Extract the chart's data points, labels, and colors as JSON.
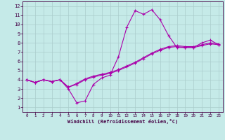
{
  "xlabel": "Windchill (Refroidissement éolien,°C)",
  "background_color": "#c5eae8",
  "grid_color": "#aacccc",
  "line_color": "#aa00aa",
  "xlim": [
    -0.5,
    23.5
  ],
  "ylim": [
    0.5,
    12.5
  ],
  "xticks": [
    0,
    1,
    2,
    3,
    4,
    5,
    6,
    7,
    8,
    9,
    10,
    11,
    12,
    13,
    14,
    15,
    16,
    17,
    18,
    19,
    20,
    21,
    22,
    23
  ],
  "yticks": [
    1,
    2,
    3,
    4,
    5,
    6,
    7,
    8,
    9,
    10,
    11,
    12
  ],
  "hours": [
    0,
    1,
    2,
    3,
    4,
    5,
    6,
    7,
    8,
    9,
    10,
    11,
    12,
    13,
    14,
    15,
    16,
    17,
    18,
    19,
    20,
    21,
    22,
    23
  ],
  "line1": [
    4.0,
    3.7,
    4.0,
    3.8,
    4.0,
    3.0,
    1.5,
    1.7,
    3.5,
    4.2,
    4.5,
    6.5,
    9.7,
    11.5,
    11.1,
    11.6,
    10.5,
    8.8,
    7.5,
    7.5,
    7.5,
    8.0,
    8.3,
    7.8
  ],
  "line2": [
    4.0,
    3.7,
    4.0,
    3.8,
    4.0,
    3.2,
    3.5,
    4.0,
    4.3,
    4.5,
    4.7,
    5.0,
    5.4,
    5.8,
    6.3,
    6.8,
    7.2,
    7.5,
    7.6,
    7.5,
    7.5,
    7.7,
    7.9,
    7.8
  ],
  "line3": [
    4.0,
    3.7,
    4.0,
    3.8,
    4.0,
    3.2,
    3.6,
    4.1,
    4.4,
    4.6,
    4.8,
    5.1,
    5.5,
    5.9,
    6.4,
    6.9,
    7.3,
    7.6,
    7.7,
    7.6,
    7.6,
    7.8,
    8.0,
    7.9
  ]
}
